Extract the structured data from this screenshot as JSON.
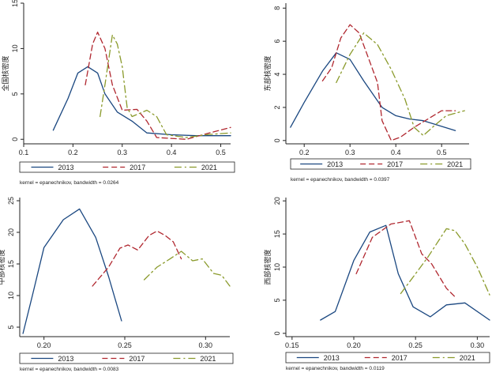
{
  "colors": {
    "s2013": "#1a4780",
    "s2017": "#b0272f",
    "s2021": "#8a9a2b",
    "axis": "#222222"
  },
  "chart_data": [
    {
      "type": "line",
      "ylabel": "全国核密度",
      "xlim": [
        0.1,
        0.52
      ],
      "ylim": [
        -0.5,
        15
      ],
      "xticks": [
        "0.1",
        "0.2",
        "0.3",
        "0.4",
        "0.5"
      ],
      "xtick_values": [
        0.1,
        0.2,
        0.3,
        0.4,
        0.5
      ],
      "yticks": [
        "0",
        "5",
        "10",
        "15"
      ],
      "ytick_values": [
        0,
        5,
        10,
        15
      ],
      "note": "kernel = epanechnikov, bandwidth = 0.0264",
      "series": [
        {
          "name": "2013",
          "key": "s2013",
          "dash": "",
          "points": [
            [
              0.16,
              1.0
            ],
            [
              0.19,
              4.5
            ],
            [
              0.21,
              7.3
            ],
            [
              0.23,
              8.0
            ],
            [
              0.25,
              7.3
            ],
            [
              0.265,
              5.0
            ],
            [
              0.29,
              3.0
            ],
            [
              0.32,
              2.0
            ],
            [
              0.35,
              0.7
            ],
            [
              0.4,
              0.5
            ],
            [
              0.45,
              0.4
            ],
            [
              0.52,
              0.4
            ]
          ]
        },
        {
          "name": "2017",
          "key": "s2017",
          "dash": "7,4",
          "points": [
            [
              0.225,
              6.0
            ],
            [
              0.24,
              10.5
            ],
            [
              0.25,
              11.8
            ],
            [
              0.265,
              10.0
            ],
            [
              0.28,
              6.0
            ],
            [
              0.3,
              3.2
            ],
            [
              0.33,
              3.3
            ],
            [
              0.35,
              2.0
            ],
            [
              0.37,
              0.2
            ],
            [
              0.43,
              0.0
            ],
            [
              0.47,
              0.6
            ],
            [
              0.52,
              1.3
            ]
          ]
        },
        {
          "name": "2021",
          "key": "s2021",
          "dash": "9,4,2,4",
          "points": [
            [
              0.255,
              2.5
            ],
            [
              0.265,
              6.0
            ],
            [
              0.28,
              11.5
            ],
            [
              0.29,
              10.5
            ],
            [
              0.3,
              8.0
            ],
            [
              0.31,
              3.5
            ],
            [
              0.32,
              2.5
            ],
            [
              0.35,
              3.2
            ],
            [
              0.37,
              2.5
            ],
            [
              0.39,
              0.5
            ],
            [
              0.43,
              0.2
            ],
            [
              0.47,
              0.5
            ],
            [
              0.52,
              0.7
            ]
          ]
        }
      ]
    },
    {
      "type": "line",
      "ylabel": "东部核密度",
      "xlim": [
        0.16,
        0.56
      ],
      "ylim": [
        -0.2,
        8.3
      ],
      "xticks": [
        "0.2",
        "0.3",
        "0.4",
        "0.5"
      ],
      "xtick_values": [
        0.2,
        0.3,
        0.4,
        0.5
      ],
      "yticks": [
        "0",
        "2",
        "4",
        "6",
        "8"
      ],
      "ytick_values": [
        0,
        2,
        4,
        6,
        8
      ],
      "note": "kernel = epanechnikov, bandwidth = 0.0397",
      "series": [
        {
          "name": "2013",
          "key": "s2013",
          "dash": "",
          "points": [
            [
              0.17,
              0.8
            ],
            [
              0.2,
              2.3
            ],
            [
              0.24,
              4.2
            ],
            [
              0.27,
              5.3
            ],
            [
              0.3,
              4.9
            ],
            [
              0.33,
              3.6
            ],
            [
              0.37,
              2.0
            ],
            [
              0.4,
              1.5
            ],
            [
              0.43,
              1.3
            ],
            [
              0.46,
              1.2
            ],
            [
              0.53,
              0.6
            ]
          ]
        },
        {
          "name": "2017",
          "key": "s2017",
          "dash": "7,4",
          "points": [
            [
              0.24,
              3.6
            ],
            [
              0.26,
              4.4
            ],
            [
              0.28,
              6.2
            ],
            [
              0.3,
              7.0
            ],
            [
              0.32,
              6.5
            ],
            [
              0.34,
              5.0
            ],
            [
              0.36,
              3.5
            ],
            [
              0.37,
              1.2
            ],
            [
              0.39,
              0.0
            ],
            [
              0.41,
              0.2
            ],
            [
              0.44,
              0.8
            ],
            [
              0.47,
              1.3
            ],
            [
              0.5,
              1.8
            ],
            [
              0.53,
              1.8
            ]
          ]
        },
        {
          "name": "2021",
          "key": "s2021",
          "dash": "9,4,2,4",
          "points": [
            [
              0.27,
              3.5
            ],
            [
              0.3,
              5.2
            ],
            [
              0.33,
              6.5
            ],
            [
              0.36,
              5.8
            ],
            [
              0.39,
              4.3
            ],
            [
              0.42,
              2.5
            ],
            [
              0.44,
              0.8
            ],
            [
              0.46,
              0.3
            ],
            [
              0.48,
              0.8
            ],
            [
              0.51,
              1.5
            ],
            [
              0.55,
              1.8
            ]
          ]
        }
      ]
    },
    {
      "type": "line",
      "ylabel": "中部核密度",
      "xlim": [
        0.185,
        0.315
      ],
      "ylim": [
        3.5,
        25.5
      ],
      "xticks": [
        "0.20",
        "0.25",
        "0.30"
      ],
      "xtick_values": [
        0.2,
        0.25,
        0.3
      ],
      "yticks": [
        "5",
        "10",
        "15",
        "20",
        "25"
      ],
      "ytick_values": [
        5,
        10,
        15,
        20,
        25
      ],
      "note": "kernel = epanechnikov, bandwidth = 0.0083",
      "series": [
        {
          "name": "2013",
          "key": "s2013",
          "dash": "",
          "points": [
            [
              0.187,
              4.0
            ],
            [
              0.193,
              10.2
            ],
            [
              0.2,
              17.6
            ],
            [
              0.212,
              22.0
            ],
            [
              0.222,
              23.7
            ],
            [
              0.232,
              19.2
            ],
            [
              0.24,
              13.0
            ],
            [
              0.248,
              6.0
            ]
          ]
        },
        {
          "name": "2017",
          "key": "s2017",
          "dash": "7,4",
          "points": [
            [
              0.23,
              11.5
            ],
            [
              0.24,
              14.5
            ],
            [
              0.247,
              17.5
            ],
            [
              0.252,
              18.0
            ],
            [
              0.258,
              17.2
            ],
            [
              0.265,
              19.5
            ],
            [
              0.27,
              20.2
            ],
            [
              0.275,
              19.5
            ],
            [
              0.28,
              18.5
            ],
            [
              0.285,
              15.8
            ]
          ]
        },
        {
          "name": "2021",
          "key": "s2021",
          "dash": "9,4,2,4",
          "points": [
            [
              0.262,
              12.5
            ],
            [
              0.27,
              14.5
            ],
            [
              0.278,
              15.8
            ],
            [
              0.285,
              17.0
            ],
            [
              0.292,
              15.5
            ],
            [
              0.298,
              15.8
            ],
            [
              0.305,
              13.5
            ],
            [
              0.31,
              13.2
            ],
            [
              0.315,
              11.5
            ]
          ]
        }
      ]
    },
    {
      "type": "line",
      "ylabel": "西部核密度",
      "xlim": [
        0.145,
        0.31
      ],
      "ylim": [
        -0.5,
        20.5
      ],
      "xticks": [
        "0.15",
        "0.20",
        "0.25",
        "0.30"
      ],
      "xtick_values": [
        0.15,
        0.2,
        0.25,
        0.3
      ],
      "yticks": [
        "0",
        "5",
        "10",
        "15",
        "20"
      ],
      "ytick_values": [
        0,
        5,
        10,
        15,
        20
      ],
      "note": "kernel = epanechnikov, bandwidth = 0.0119",
      "series": [
        {
          "name": "2013",
          "key": "s2013",
          "dash": "",
          "points": [
            [
              0.173,
              2.0
            ],
            [
              0.185,
              3.3
            ],
            [
              0.2,
              11.0
            ],
            [
              0.213,
              15.3
            ],
            [
              0.226,
              16.3
            ],
            [
              0.236,
              9.0
            ],
            [
              0.248,
              4.0
            ],
            [
              0.262,
              2.5
            ],
            [
              0.275,
              4.3
            ],
            [
              0.29,
              4.6
            ],
            [
              0.31,
              2.0
            ]
          ]
        },
        {
          "name": "2017",
          "key": "s2017",
          "dash": "7,4",
          "points": [
            [
              0.202,
              9.0
            ],
            [
              0.215,
              14.5
            ],
            [
              0.23,
              16.5
            ],
            [
              0.245,
              17.0
            ],
            [
              0.255,
              12.0
            ],
            [
              0.263,
              10.5
            ],
            [
              0.275,
              6.8
            ],
            [
              0.282,
              5.5
            ]
          ]
        },
        {
          "name": "2021",
          "key": "s2021",
          "dash": "9,4,2,4",
          "points": [
            [
              0.238,
              6.0
            ],
            [
              0.248,
              8.5
            ],
            [
              0.26,
              11.5
            ],
            [
              0.275,
              15.8
            ],
            [
              0.282,
              15.5
            ],
            [
              0.29,
              13.5
            ],
            [
              0.3,
              10.0
            ],
            [
              0.31,
              5.8
            ]
          ]
        }
      ]
    }
  ]
}
